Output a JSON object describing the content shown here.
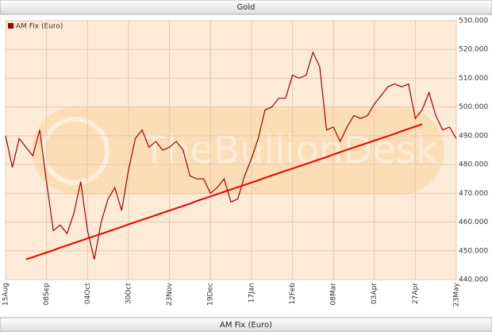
{
  "chart_data": {
    "type": "line",
    "title": "Gold",
    "x_label": "AM Fix (Euro)",
    "watermark": "TheBullionDesk",
    "categories": [
      "15Aug",
      null,
      null,
      null,
      null,
      null,
      "08Sep",
      null,
      null,
      null,
      null,
      null,
      "04Oct",
      null,
      null,
      null,
      null,
      null,
      "30Oct",
      null,
      null,
      null,
      null,
      null,
      "23Nov",
      null,
      null,
      null,
      null,
      null,
      "19Dec",
      null,
      null,
      null,
      null,
      null,
      "17Jan",
      null,
      null,
      null,
      null,
      null,
      "12Feb",
      null,
      null,
      null,
      null,
      null,
      "08Mar",
      null,
      null,
      null,
      null,
      null,
      "03Apr",
      null,
      null,
      null,
      null,
      null,
      "27Apr",
      null,
      null,
      null,
      null,
      null,
      "23May"
    ],
    "series": [
      {
        "name": "AM Fix (Euro)",
        "color": "#a00000",
        "values": [
          490,
          479,
          489,
          486,
          483,
          492,
          474,
          457,
          459,
          456,
          463,
          474,
          457,
          447,
          460,
          468,
          472,
          464,
          478,
          489,
          492,
          486,
          488,
          485,
          486,
          488,
          485,
          476,
          475,
          475,
          470,
          472,
          475,
          467,
          468,
          476,
          482,
          489,
          499,
          500,
          503,
          503,
          511,
          510,
          511,
          519,
          514,
          492,
          493,
          488,
          493,
          497,
          496,
          497,
          501,
          504,
          507,
          508,
          507,
          508,
          496,
          499,
          505,
          497,
          492,
          493,
          489
        ]
      },
      {
        "color": "#e80000",
        "values": [
          null,
          null,
          null,
          447.0,
          447.8,
          448.6,
          449.4,
          450.2,
          451.1,
          451.9,
          452.7,
          453.5,
          454.3,
          455.1,
          455.9,
          456.7,
          457.5,
          458.3,
          459.2,
          460.0,
          460.8,
          461.6,
          462.4,
          463.2,
          464.0,
          464.8,
          465.6,
          466.4,
          467.3,
          468.1,
          468.9,
          469.7,
          470.5,
          471.3,
          472.1,
          472.9,
          473.7,
          474.5,
          475.4,
          476.2,
          477.0,
          477.8,
          478.6,
          479.4,
          480.2,
          481.0,
          481.8,
          482.6,
          483.5,
          484.3,
          485.1,
          485.9,
          486.7,
          487.5,
          488.3,
          489.1,
          489.9,
          490.7,
          491.6,
          492.4,
          493.2,
          494.0,
          null,
          null,
          null,
          null,
          null
        ]
      }
    ],
    "ylim": [
      440,
      530
    ],
    "yticks": [
      {
        "value": 440,
        "label": "440.000"
      },
      {
        "value": 450,
        "label": "450.000"
      },
      {
        "value": 460,
        "label": "460.000"
      },
      {
        "value": 470,
        "label": "470.000"
      },
      {
        "value": 480,
        "label": "480.000"
      },
      {
        "value": 490,
        "label": "490.000"
      },
      {
        "value": 500,
        "label": "500.000"
      },
      {
        "value": 510,
        "label": "510.000"
      },
      {
        "value": 520,
        "label": "520.000"
      },
      {
        "value": 530,
        "label": "530.000"
      }
    ],
    "grid": true,
    "legend": "top-left"
  }
}
